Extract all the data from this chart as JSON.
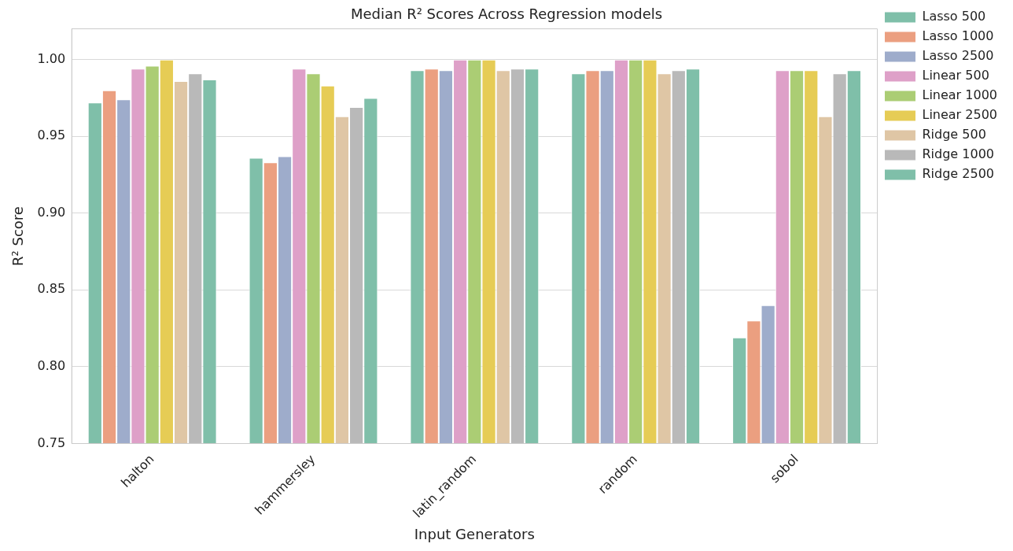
{
  "chart_data": {
    "type": "bar",
    "title": "Median R² Scores Across Regression models",
    "xlabel": "Input Generators",
    "ylabel": "R² Score",
    "categories": [
      "halton",
      "hammersley",
      "latin_random",
      "random",
      "sobol"
    ],
    "ylim": [
      0.75,
      1.02
    ],
    "yticks": [
      0.75,
      {
        "value": 0.8,
        "label": "0.80"
      },
      0.85,
      {
        "value": 0.9,
        "label": "0.90"
      },
      0.95,
      {
        "value": 1,
        "label": "1.00"
      }
    ],
    "grid": "y",
    "legend": "top right",
    "series": [
      {
        "name": "Lasso 500",
        "color": "#7fbfa9",
        "values": [
          0.972,
          0.936,
          0.993,
          0.991,
          0.819
        ]
      },
      {
        "name": "Lasso 1000",
        "color": "#eb9f80",
        "values": [
          0.98,
          0.933,
          0.994,
          0.993,
          0.83
        ]
      },
      {
        "name": "Lasso 2500",
        "color": "#9eaccb",
        "values": [
          0.974,
          0.937,
          0.993,
          0.993,
          0.84
        ]
      },
      {
        "name": "Linear 500",
        "color": "#dea0c8",
        "values": [
          0.994,
          0.994,
          1.0,
          1.0,
          0.993
        ]
      },
      {
        "name": "Linear 1000",
        "color": "#abcd74",
        "values": [
          0.996,
          0.991,
          1.0,
          1.0,
          0.993
        ]
      },
      {
        "name": "Linear 2500",
        "color": "#e6cc55",
        "values": [
          1.0,
          0.983,
          1.0,
          1.0,
          0.993
        ]
      },
      {
        "name": "Ridge 500",
        "color": "#dfc6a5",
        "values": [
          0.986,
          0.963,
          0.993,
          0.991,
          0.963
        ]
      },
      {
        "name": "Ridge 1000",
        "color": "#b9b9b9",
        "values": [
          0.991,
          0.969,
          0.994,
          0.993,
          0.991
        ]
      },
      {
        "name": "Ridge 2500",
        "color": "#7fbfa9",
        "values": [
          0.987,
          0.975,
          0.994,
          0.994,
          0.993
        ]
      }
    ]
  }
}
